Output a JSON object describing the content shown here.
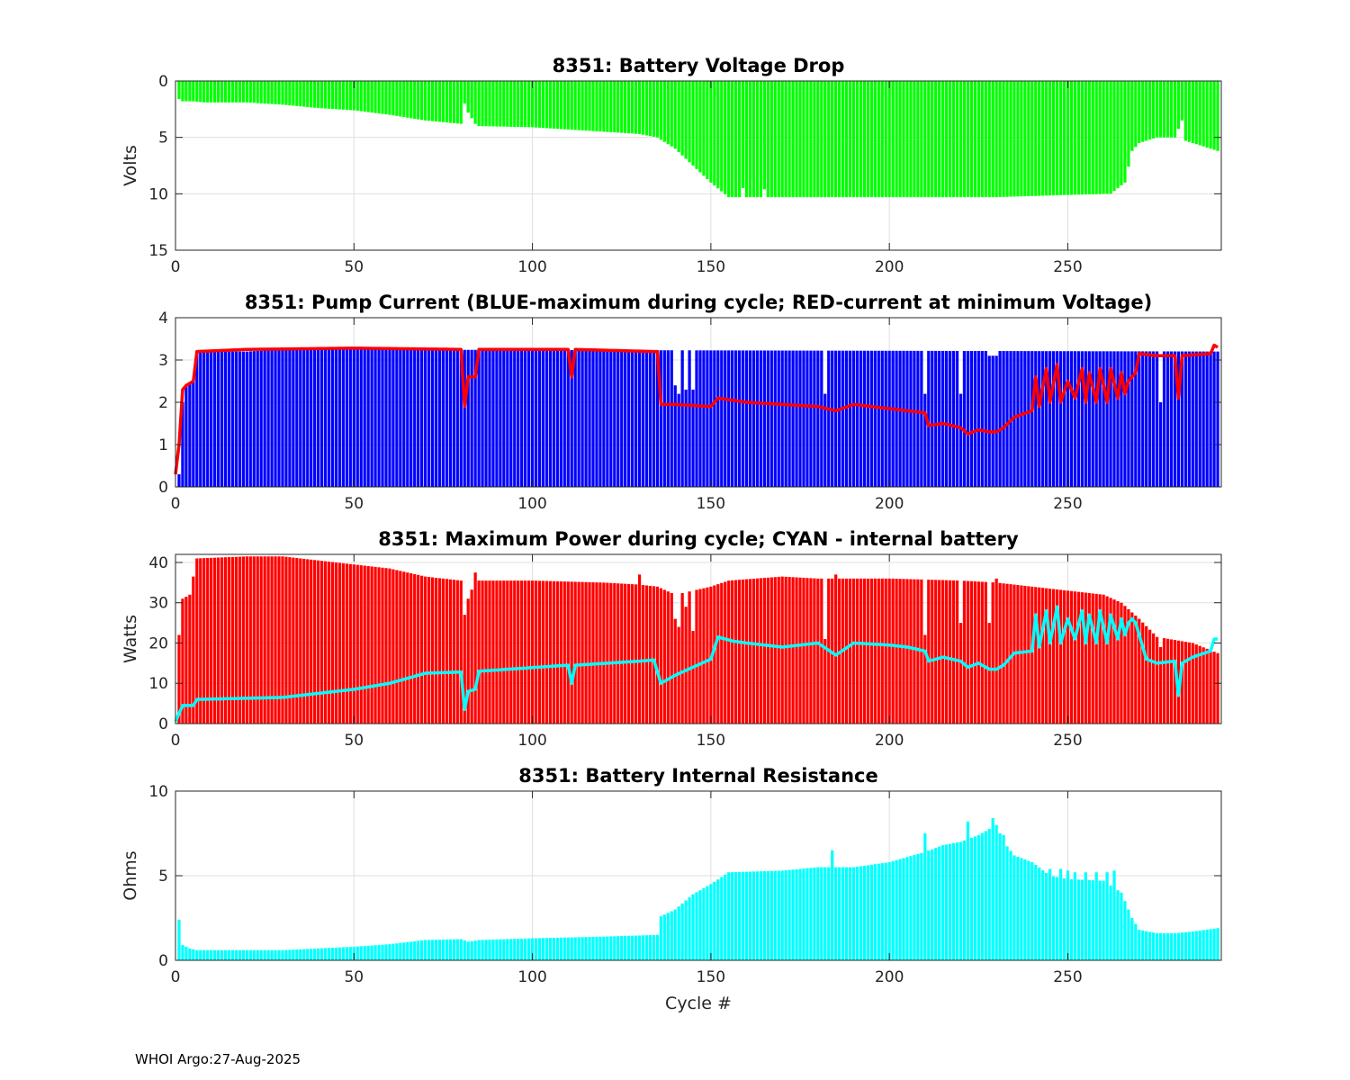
{
  "colors": {
    "voltage_bar": "#00ff00",
    "pump_bar": "#0000ff",
    "pump_line": "#ff0000",
    "power_bar": "#ff0000",
    "power_line": "#00ffff",
    "resistance_bar": "#00ffff",
    "grid": "#dfdfdf",
    "axis": "#262626"
  },
  "footer": "WHOI Argo:27-Aug-2025",
  "chart_data": [
    {
      "type": "bar",
      "title": "8351: Battery Voltage Drop",
      "ylabel": "Volts",
      "xlabel": "",
      "xlim": [
        0,
        293
      ],
      "ylim": [
        0,
        15
      ],
      "y_reversed": true,
      "xticks": [
        0,
        50,
        100,
        150,
        200,
        250
      ],
      "yticks": [
        0,
        5,
        10,
        15
      ],
      "bar_color": "voltage_bar",
      "x_range": [
        1,
        292
      ],
      "bar_anchors": [
        [
          1,
          1.6
        ],
        [
          2,
          1.8
        ],
        [
          5,
          1.8
        ],
        [
          8,
          1.9
        ],
        [
          20,
          1.9
        ],
        [
          30,
          2.1
        ],
        [
          40,
          2.4
        ],
        [
          50,
          2.6
        ],
        [
          60,
          3.0
        ],
        [
          70,
          3.5
        ],
        [
          80,
          3.8
        ],
        [
          81,
          2.0
        ],
        [
          82,
          2.8
        ],
        [
          84,
          3.8
        ],
        [
          85,
          4.0
        ],
        [
          100,
          4.1
        ],
        [
          110,
          4.3
        ],
        [
          130,
          4.7
        ],
        [
          135,
          5.0
        ],
        [
          140,
          6.0
        ],
        [
          145,
          7.5
        ],
        [
          150,
          9.0
        ],
        [
          155,
          10.3
        ],
        [
          160,
          10.3
        ],
        [
          165,
          10.3
        ],
        [
          200,
          10.3
        ],
        [
          230,
          10.3
        ],
        [
          250,
          10.1
        ],
        [
          262,
          10.0
        ],
        [
          266,
          9.0
        ],
        [
          268,
          6.2
        ],
        [
          270,
          5.5
        ],
        [
          275,
          5.0
        ],
        [
          280,
          5.0
        ],
        [
          282,
          3.5
        ],
        [
          283,
          5.3
        ],
        [
          288,
          5.8
        ],
        [
          292,
          6.2
        ]
      ],
      "bar_overrides": [
        [
          159,
          9.5
        ],
        [
          165,
          9.6
        ]
      ],
      "spikes": []
    },
    {
      "type": "bar",
      "title": "8351: Pump Current (BLUE-maximum during cycle; RED-current at minimum Voltage)",
      "ylabel": "",
      "xlabel": "",
      "xlim": [
        0,
        293
      ],
      "ylim": [
        0,
        4
      ],
      "xticks": [
        0,
        50,
        100,
        150,
        200,
        250
      ],
      "yticks": [
        0,
        1,
        2,
        3,
        4
      ],
      "bar_color": "pump_bar",
      "x_range": [
        1,
        292
      ],
      "bar_anchors": [
        [
          1,
          0.3
        ],
        [
          2,
          2.0
        ],
        [
          3,
          2.4
        ],
        [
          5,
          2.5
        ],
        [
          6,
          3.2
        ],
        [
          20,
          3.2
        ],
        [
          30,
          3.25
        ],
        [
          292,
          3.2
        ]
      ],
      "bar_overrides": [
        [
          140,
          2.4
        ],
        [
          141,
          2.2
        ],
        [
          143,
          2.3
        ],
        [
          145,
          2.3
        ],
        [
          182,
          2.2
        ],
        [
          210,
          2.2
        ],
        [
          220,
          2.2
        ],
        [
          228,
          3.1
        ],
        [
          229,
          3.1
        ],
        [
          230,
          3.1
        ],
        [
          276,
          2.0
        ]
      ],
      "line_color": "pump_line",
      "line_anchors": [
        [
          0,
          0.3
        ],
        [
          1,
          1.0
        ],
        [
          2,
          2.3
        ],
        [
          3,
          2.4
        ],
        [
          5,
          2.5
        ],
        [
          6,
          3.2
        ],
        [
          20,
          3.25
        ],
        [
          50,
          3.28
        ],
        [
          80,
          3.25
        ],
        [
          81,
          1.9
        ],
        [
          82,
          2.6
        ],
        [
          84,
          2.6
        ],
        [
          85,
          3.25
        ],
        [
          110,
          3.25
        ],
        [
          111,
          2.6
        ],
        [
          112,
          3.25
        ],
        [
          134,
          3.2
        ],
        [
          135,
          3.2
        ],
        [
          136,
          1.95
        ],
        [
          140,
          1.95
        ],
        [
          150,
          1.9
        ],
        [
          152,
          2.1
        ],
        [
          160,
          2.0
        ],
        [
          170,
          1.95
        ],
        [
          180,
          1.9
        ],
        [
          185,
          1.8
        ],
        [
          190,
          1.95
        ],
        [
          200,
          1.85
        ],
        [
          205,
          1.8
        ],
        [
          210,
          1.75
        ],
        [
          211,
          1.45
        ],
        [
          215,
          1.5
        ],
        [
          220,
          1.4
        ],
        [
          222,
          1.25
        ],
        [
          225,
          1.35
        ],
        [
          228,
          1.3
        ],
        [
          230,
          1.3
        ],
        [
          232,
          1.4
        ],
        [
          235,
          1.65
        ],
        [
          240,
          1.8
        ],
        [
          241,
          2.6
        ],
        [
          242,
          1.9
        ],
        [
          244,
          2.8
        ],
        [
          245,
          2.0
        ],
        [
          247,
          2.9
        ],
        [
          248,
          2.0
        ],
        [
          250,
          2.5
        ],
        [
          252,
          2.1
        ],
        [
          254,
          2.8
        ],
        [
          255,
          2.0
        ],
        [
          256,
          2.7
        ],
        [
          258,
          2.0
        ],
        [
          259,
          2.8
        ],
        [
          261,
          2.0
        ],
        [
          262,
          2.8
        ],
        [
          264,
          2.1
        ],
        [
          265,
          2.7
        ],
        [
          266,
          2.2
        ],
        [
          267,
          2.5
        ],
        [
          268,
          2.6
        ],
        [
          269,
          2.7
        ],
        [
          270,
          3.15
        ],
        [
          275,
          3.1
        ],
        [
          280,
          3.1
        ],
        [
          281,
          2.1
        ],
        [
          282,
          3.1
        ],
        [
          290,
          3.15
        ],
        [
          291,
          3.35
        ],
        [
          292,
          3.3
        ]
      ]
    },
    {
      "type": "bar",
      "title": "8351: Maximum Power during cycle; CYAN - internal battery",
      "ylabel": "Watts",
      "xlabel": "",
      "xlim": [
        0,
        293
      ],
      "ylim": [
        0,
        42
      ],
      "xticks": [
        0,
        50,
        100,
        150,
        200,
        250
      ],
      "yticks": [
        0,
        10,
        20,
        30,
        40
      ],
      "bar_color": "power_bar",
      "x_range": [
        1,
        292
      ],
      "bar_anchors": [
        [
          1,
          22
        ],
        [
          2,
          31
        ],
        [
          4,
          32
        ],
        [
          6,
          41
        ],
        [
          20,
          41.5
        ],
        [
          30,
          41.5
        ],
        [
          40,
          40.5
        ],
        [
          50,
          39.5
        ],
        [
          60,
          38.5
        ],
        [
          70,
          36.5
        ],
        [
          80,
          35.5
        ],
        [
          81,
          27
        ],
        [
          82,
          31
        ],
        [
          84,
          35.5
        ],
        [
          100,
          35.5
        ],
        [
          120,
          35
        ],
        [
          130,
          34.5
        ],
        [
          135,
          34
        ],
        [
          140,
          32
        ],
        [
          145,
          33
        ],
        [
          150,
          34
        ],
        [
          155,
          35.5
        ],
        [
          170,
          36.5
        ],
        [
          180,
          36
        ],
        [
          200,
          36
        ],
        [
          220,
          35.5
        ],
        [
          230,
          35
        ],
        [
          240,
          34
        ],
        [
          250,
          33
        ],
        [
          260,
          32
        ],
        [
          265,
          30
        ],
        [
          270,
          26
        ],
        [
          275,
          21.5
        ],
        [
          285,
          20
        ],
        [
          292,
          17.5
        ]
      ],
      "bar_overrides": [
        [
          140,
          26
        ],
        [
          141,
          24
        ],
        [
          143,
          29
        ],
        [
          145,
          23
        ],
        [
          182,
          21
        ],
        [
          210,
          22
        ],
        [
          220,
          25
        ],
        [
          228,
          25
        ],
        [
          276,
          19
        ]
      ],
      "spikes": [
        [
          84,
          37.5
        ],
        [
          130,
          37
        ],
        [
          185,
          37
        ],
        [
          230,
          36
        ]
      ],
      "line_color": "power_line",
      "line_anchors": [
        [
          0,
          0.5
        ],
        [
          1,
          2.5
        ],
        [
          2,
          4.5
        ],
        [
          5,
          4.5
        ],
        [
          6,
          6
        ],
        [
          30,
          6.5
        ],
        [
          40,
          7.5
        ],
        [
          50,
          8.5
        ],
        [
          60,
          10
        ],
        [
          70,
          12.5
        ],
        [
          80,
          12.8
        ],
        [
          81,
          3.5
        ],
        [
          82,
          8
        ],
        [
          84,
          8.5
        ],
        [
          85,
          13
        ],
        [
          110,
          14.5
        ],
        [
          111,
          10
        ],
        [
          112,
          14.5
        ],
        [
          130,
          15.5
        ],
        [
          134,
          15.8
        ],
        [
          136,
          10
        ],
        [
          140,
          12
        ],
        [
          145,
          14
        ],
        [
          150,
          16
        ],
        [
          152,
          21.5
        ],
        [
          156,
          20.5
        ],
        [
          160,
          20
        ],
        [
          170,
          19
        ],
        [
          180,
          20
        ],
        [
          185,
          17
        ],
        [
          190,
          20
        ],
        [
          200,
          19.5
        ],
        [
          205,
          19
        ],
        [
          210,
          18
        ],
        [
          211,
          15.5
        ],
        [
          215,
          16.5
        ],
        [
          220,
          15.5
        ],
        [
          222,
          14
        ],
        [
          225,
          15
        ],
        [
          228,
          13.5
        ],
        [
          230,
          13.5
        ],
        [
          232,
          14.5
        ],
        [
          235,
          17.5
        ],
        [
          240,
          18
        ],
        [
          241,
          27
        ],
        [
          242,
          19
        ],
        [
          244,
          28
        ],
        [
          245,
          20
        ],
        [
          247,
          29
        ],
        [
          248,
          20
        ],
        [
          250,
          26
        ],
        [
          252,
          21
        ],
        [
          254,
          28
        ],
        [
          255,
          20
        ],
        [
          256,
          27
        ],
        [
          258,
          20
        ],
        [
          259,
          28
        ],
        [
          261,
          20
        ],
        [
          262,
          27
        ],
        [
          264,
          21
        ],
        [
          265,
          26
        ],
        [
          266,
          22
        ],
        [
          267,
          25
        ],
        [
          268,
          26
        ],
        [
          269,
          25
        ],
        [
          270,
          22
        ],
        [
          272,
          16
        ],
        [
          275,
          15
        ],
        [
          280,
          15.5
        ],
        [
          281,
          7
        ],
        [
          282,
          15
        ],
        [
          285,
          16.5
        ],
        [
          290,
          18
        ],
        [
          291,
          21
        ],
        [
          292,
          21
        ]
      ]
    },
    {
      "type": "bar",
      "title": "8351: Battery Internal Resistance",
      "ylabel": "Ohms",
      "xlabel": "Cycle #",
      "xlim": [
        0,
        293
      ],
      "ylim": [
        0,
        10
      ],
      "xticks": [
        0,
        50,
        100,
        150,
        200,
        250
      ],
      "yticks": [
        0,
        5,
        10
      ],
      "bar_color": "resistance_bar",
      "x_range": [
        1,
        292
      ],
      "bar_anchors": [
        [
          1,
          2.4
        ],
        [
          2,
          0.9
        ],
        [
          4,
          0.7
        ],
        [
          6,
          0.6
        ],
        [
          30,
          0.6
        ],
        [
          50,
          0.8
        ],
        [
          60,
          0.95
        ],
        [
          70,
          1.2
        ],
        [
          80,
          1.25
        ],
        [
          82,
          1.1
        ],
        [
          85,
          1.2
        ],
        [
          100,
          1.3
        ],
        [
          120,
          1.4
        ],
        [
          135,
          1.5
        ],
        [
          136,
          2.6
        ],
        [
          140,
          3
        ],
        [
          145,
          3.9
        ],
        [
          150,
          4.5
        ],
        [
          155,
          5.2
        ],
        [
          170,
          5.3
        ],
        [
          180,
          5.5
        ],
        [
          190,
          5.5
        ],
        [
          200,
          5.8
        ],
        [
          210,
          6.4
        ],
        [
          215,
          6.8
        ],
        [
          220,
          7.0
        ],
        [
          225,
          7.4
        ],
        [
          230,
          8.0
        ],
        [
          232,
          7.0
        ],
        [
          235,
          6.2
        ],
        [
          240,
          5.8
        ],
        [
          245,
          5.0
        ],
        [
          250,
          4.8
        ],
        [
          260,
          4.7
        ],
        [
          265,
          4.0
        ],
        [
          268,
          2.5
        ],
        [
          270,
          1.8
        ],
        [
          275,
          1.6
        ],
        [
          280,
          1.6
        ],
        [
          285,
          1.7
        ],
        [
          292,
          1.9
        ]
      ],
      "bar_overrides": [
        [
          184,
          6.5
        ],
        [
          210,
          7.5
        ],
        [
          222,
          8.2
        ],
        [
          229,
          8.4
        ],
        [
          232,
          7.4
        ],
        [
          245,
          5.4
        ],
        [
          248,
          5.4
        ],
        [
          250,
          5.3
        ],
        [
          252,
          5.2
        ],
        [
          255,
          5.2
        ],
        [
          258,
          5.2
        ],
        [
          261,
          5.2
        ],
        [
          263,
          5.3
        ]
      ],
      "spikes": []
    }
  ]
}
